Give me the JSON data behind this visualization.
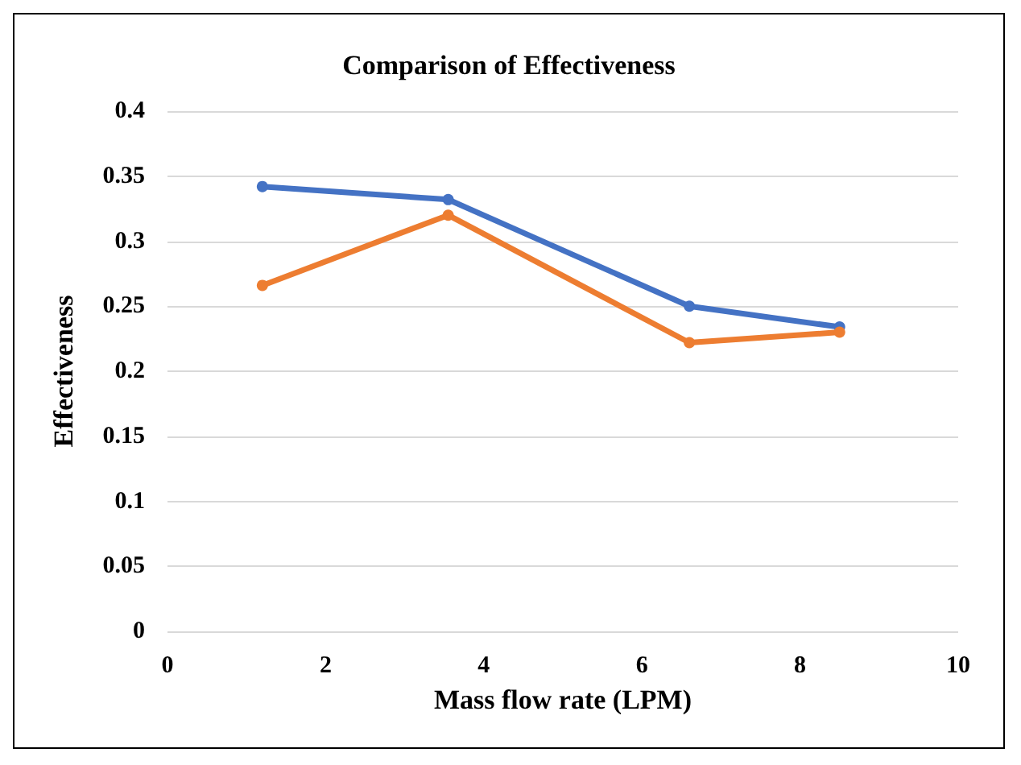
{
  "chart_data": {
    "type": "line",
    "title": "Comparison of Effectiveness",
    "xlabel": "Mass flow rate (LPM)",
    "ylabel": "Effectiveness",
    "x": [
      1.2,
      3.55,
      6.6,
      8.5
    ],
    "series": [
      {
        "color": "#4472c4",
        "values": [
          0.342,
          0.332,
          0.25,
          0.234
        ]
      },
      {
        "color": "#ed7d31",
        "values": [
          0.266,
          0.32,
          0.222,
          0.23
        ]
      }
    ],
    "xlim": [
      0,
      10
    ],
    "xticks": [
      0,
      2,
      4,
      6,
      8,
      10
    ],
    "ylim": [
      0,
      0.4
    ],
    "yticks": [
      0,
      0.05,
      0.1,
      0.15,
      0.2,
      0.25,
      0.3,
      0.35,
      0.4
    ],
    "grid": "y",
    "marker": "circle",
    "line_style": "solid"
  }
}
